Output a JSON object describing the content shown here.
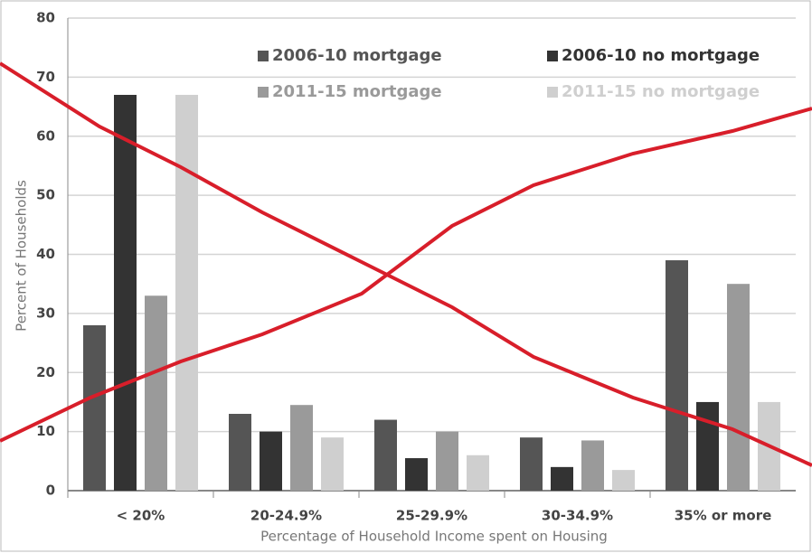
{
  "chart_data": {
    "type": "bar",
    "x_label": "Percentage of Household Income spent on Housing",
    "y_label": "Percent of Households",
    "categories": [
      "< 20%",
      "20-24.9%",
      "25-29.9%",
      "30-34.9%",
      "35% or more"
    ],
    "series": [
      {
        "name": "2006-10 mortgage",
        "color": "#555555",
        "values": [
          28,
          13,
          12,
          9,
          39
        ]
      },
      {
        "name": "2006-10 no mortgage",
        "color": "#333333",
        "values": [
          67,
          10,
          5.5,
          4,
          15
        ]
      },
      {
        "name": "2011-15 mortgage",
        "color": "#9a9a9a",
        "values": [
          33,
          14.5,
          10,
          8.5,
          35
        ]
      },
      {
        "name": "2011-15 no mortgage",
        "color": "#cfcfcf",
        "values": [
          67,
          9,
          6,
          3.5,
          15
        ]
      }
    ],
    "ylim": [
      0,
      80
    ],
    "yticks": [
      0,
      10,
      20,
      30,
      40,
      50,
      60,
      70,
      80
    ],
    "grid": true,
    "legend": "upper center"
  }
}
